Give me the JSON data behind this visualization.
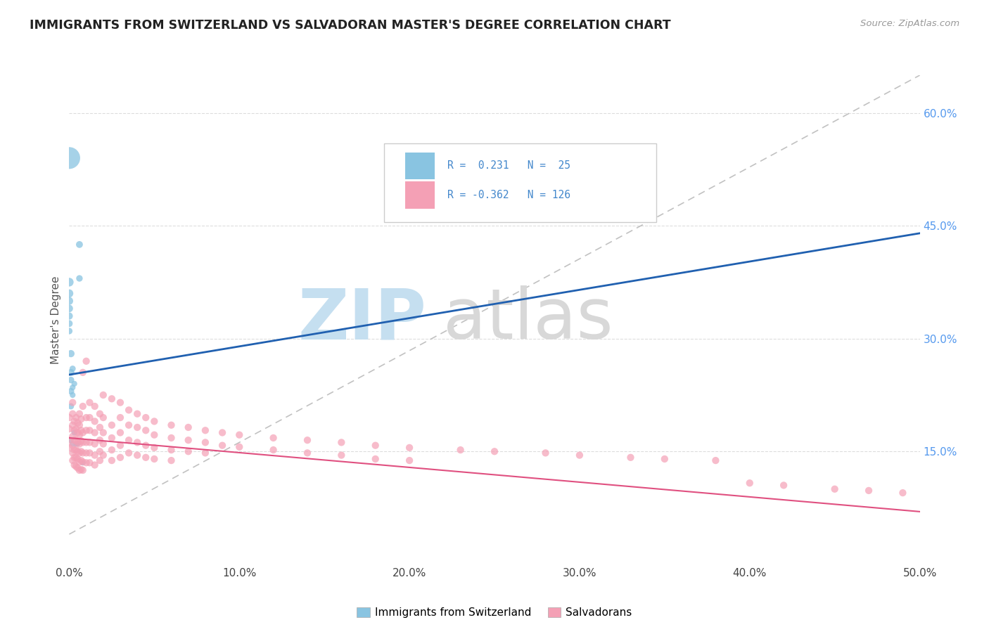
{
  "title": "IMMIGRANTS FROM SWITZERLAND VS SALVADORAN MASTER'S DEGREE CORRELATION CHART",
  "source": "Source: ZipAtlas.com",
  "ylabel": "Master's Degree",
  "x_min": 0.0,
  "x_max": 0.5,
  "y_min": 0.0,
  "y_max": 0.65,
  "x_ticks": [
    0.0,
    0.1,
    0.2,
    0.3,
    0.4,
    0.5
  ],
  "x_tick_labels": [
    "0.0%",
    "10.0%",
    "20.0%",
    "30.0%",
    "40.0%",
    "50.0%"
  ],
  "y_ticks_right": [
    0.15,
    0.3,
    0.45,
    0.6
  ],
  "y_tick_labels_right": [
    "15.0%",
    "30.0%",
    "45.0%",
    "60.0%"
  ],
  "swiss_color": "#89c4e1",
  "salv_color": "#f4a0b5",
  "swiss_line_color": "#2060b0",
  "salv_line_color": "#e05080",
  "dashed_line_color": "#bbbbbb",
  "swiss_points": [
    [
      0.0,
      0.54
    ],
    [
      0.0,
      0.375
    ],
    [
      0.0,
      0.36
    ],
    [
      0.0,
      0.35
    ],
    [
      0.0,
      0.34
    ],
    [
      0.0,
      0.33
    ],
    [
      0.0,
      0.32
    ],
    [
      0.0,
      0.31
    ],
    [
      0.001,
      0.28
    ],
    [
      0.001,
      0.255
    ],
    [
      0.001,
      0.245
    ],
    [
      0.001,
      0.23
    ],
    [
      0.001,
      0.21
    ],
    [
      0.001,
      0.165
    ],
    [
      0.002,
      0.26
    ],
    [
      0.002,
      0.235
    ],
    [
      0.002,
      0.225
    ],
    [
      0.002,
      0.16
    ],
    [
      0.003,
      0.24
    ],
    [
      0.003,
      0.175
    ],
    [
      0.004,
      0.16
    ],
    [
      0.005,
      0.16
    ],
    [
      0.006,
      0.425
    ],
    [
      0.006,
      0.38
    ],
    [
      0.008,
      0.135
    ]
  ],
  "swiss_sizes": [
    500,
    80,
    70,
    65,
    60,
    55,
    50,
    45,
    55,
    50,
    45,
    45,
    40,
    35,
    40,
    35,
    35,
    35,
    35,
    35,
    30,
    30,
    50,
    45,
    30
  ],
  "salv_points": [
    [
      0.0,
      0.195
    ],
    [
      0.0,
      0.18
    ],
    [
      0.0,
      0.165
    ],
    [
      0.0,
      0.155
    ],
    [
      0.002,
      0.215
    ],
    [
      0.002,
      0.2
    ],
    [
      0.002,
      0.185
    ],
    [
      0.002,
      0.17
    ],
    [
      0.002,
      0.158
    ],
    [
      0.002,
      0.148
    ],
    [
      0.002,
      0.138
    ],
    [
      0.003,
      0.19
    ],
    [
      0.003,
      0.178
    ],
    [
      0.003,
      0.165
    ],
    [
      0.003,
      0.152
    ],
    [
      0.003,
      0.142
    ],
    [
      0.003,
      0.132
    ],
    [
      0.004,
      0.195
    ],
    [
      0.004,
      0.18
    ],
    [
      0.004,
      0.165
    ],
    [
      0.004,
      0.152
    ],
    [
      0.004,
      0.142
    ],
    [
      0.004,
      0.13
    ],
    [
      0.005,
      0.188
    ],
    [
      0.005,
      0.175
    ],
    [
      0.005,
      0.162
    ],
    [
      0.005,
      0.15
    ],
    [
      0.005,
      0.14
    ],
    [
      0.005,
      0.128
    ],
    [
      0.006,
      0.2
    ],
    [
      0.006,
      0.185
    ],
    [
      0.006,
      0.172
    ],
    [
      0.006,
      0.16
    ],
    [
      0.006,
      0.148
    ],
    [
      0.006,
      0.136
    ],
    [
      0.006,
      0.125
    ],
    [
      0.007,
      0.193
    ],
    [
      0.007,
      0.178
    ],
    [
      0.007,
      0.164
    ],
    [
      0.007,
      0.15
    ],
    [
      0.007,
      0.138
    ],
    [
      0.007,
      0.126
    ],
    [
      0.008,
      0.255
    ],
    [
      0.008,
      0.21
    ],
    [
      0.008,
      0.175
    ],
    [
      0.008,
      0.162
    ],
    [
      0.008,
      0.148
    ],
    [
      0.008,
      0.136
    ],
    [
      0.008,
      0.125
    ],
    [
      0.01,
      0.27
    ],
    [
      0.01,
      0.195
    ],
    [
      0.01,
      0.178
    ],
    [
      0.01,
      0.162
    ],
    [
      0.01,
      0.148
    ],
    [
      0.01,
      0.135
    ],
    [
      0.012,
      0.215
    ],
    [
      0.012,
      0.195
    ],
    [
      0.012,
      0.178
    ],
    [
      0.012,
      0.162
    ],
    [
      0.012,
      0.148
    ],
    [
      0.012,
      0.135
    ],
    [
      0.015,
      0.21
    ],
    [
      0.015,
      0.19
    ],
    [
      0.015,
      0.175
    ],
    [
      0.015,
      0.16
    ],
    [
      0.015,
      0.145
    ],
    [
      0.015,
      0.132
    ],
    [
      0.018,
      0.2
    ],
    [
      0.018,
      0.182
    ],
    [
      0.018,
      0.165
    ],
    [
      0.018,
      0.15
    ],
    [
      0.018,
      0.138
    ],
    [
      0.02,
      0.225
    ],
    [
      0.02,
      0.195
    ],
    [
      0.02,
      0.175
    ],
    [
      0.02,
      0.16
    ],
    [
      0.02,
      0.145
    ],
    [
      0.025,
      0.22
    ],
    [
      0.025,
      0.185
    ],
    [
      0.025,
      0.168
    ],
    [
      0.025,
      0.152
    ],
    [
      0.025,
      0.138
    ],
    [
      0.03,
      0.215
    ],
    [
      0.03,
      0.195
    ],
    [
      0.03,
      0.175
    ],
    [
      0.03,
      0.158
    ],
    [
      0.03,
      0.142
    ],
    [
      0.035,
      0.205
    ],
    [
      0.035,
      0.185
    ],
    [
      0.035,
      0.165
    ],
    [
      0.035,
      0.148
    ],
    [
      0.04,
      0.2
    ],
    [
      0.04,
      0.182
    ],
    [
      0.04,
      0.162
    ],
    [
      0.04,
      0.145
    ],
    [
      0.045,
      0.195
    ],
    [
      0.045,
      0.178
    ],
    [
      0.045,
      0.158
    ],
    [
      0.045,
      0.142
    ],
    [
      0.05,
      0.19
    ],
    [
      0.05,
      0.172
    ],
    [
      0.05,
      0.155
    ],
    [
      0.05,
      0.14
    ],
    [
      0.06,
      0.185
    ],
    [
      0.06,
      0.168
    ],
    [
      0.06,
      0.152
    ],
    [
      0.06,
      0.138
    ],
    [
      0.07,
      0.182
    ],
    [
      0.07,
      0.165
    ],
    [
      0.07,
      0.15
    ],
    [
      0.08,
      0.178
    ],
    [
      0.08,
      0.162
    ],
    [
      0.08,
      0.148
    ],
    [
      0.09,
      0.175
    ],
    [
      0.09,
      0.158
    ],
    [
      0.1,
      0.172
    ],
    [
      0.1,
      0.156
    ],
    [
      0.12,
      0.168
    ],
    [
      0.12,
      0.152
    ],
    [
      0.14,
      0.165
    ],
    [
      0.14,
      0.148
    ],
    [
      0.16,
      0.162
    ],
    [
      0.16,
      0.145
    ],
    [
      0.18,
      0.158
    ],
    [
      0.18,
      0.14
    ],
    [
      0.2,
      0.155
    ],
    [
      0.2,
      0.138
    ],
    [
      0.23,
      0.152
    ],
    [
      0.25,
      0.15
    ],
    [
      0.28,
      0.148
    ],
    [
      0.3,
      0.145
    ],
    [
      0.33,
      0.142
    ],
    [
      0.35,
      0.14
    ],
    [
      0.38,
      0.138
    ],
    [
      0.4,
      0.108
    ],
    [
      0.42,
      0.105
    ],
    [
      0.45,
      0.1
    ],
    [
      0.47,
      0.098
    ],
    [
      0.49,
      0.095
    ]
  ],
  "salv_sizes": 55,
  "legend_label_swiss": "Immigrants from Switzerland",
  "legend_label_salv": "Salvadorans",
  "background_color": "#ffffff",
  "swiss_line_x": [
    0.0,
    0.5
  ],
  "swiss_line_y": [
    0.252,
    0.44
  ],
  "salv_line_x": [
    0.0,
    0.5
  ],
  "salv_line_y": [
    0.168,
    0.07
  ],
  "dashed_line_x": [
    0.0,
    0.5
  ],
  "dashed_line_y": [
    0.04,
    0.65
  ]
}
